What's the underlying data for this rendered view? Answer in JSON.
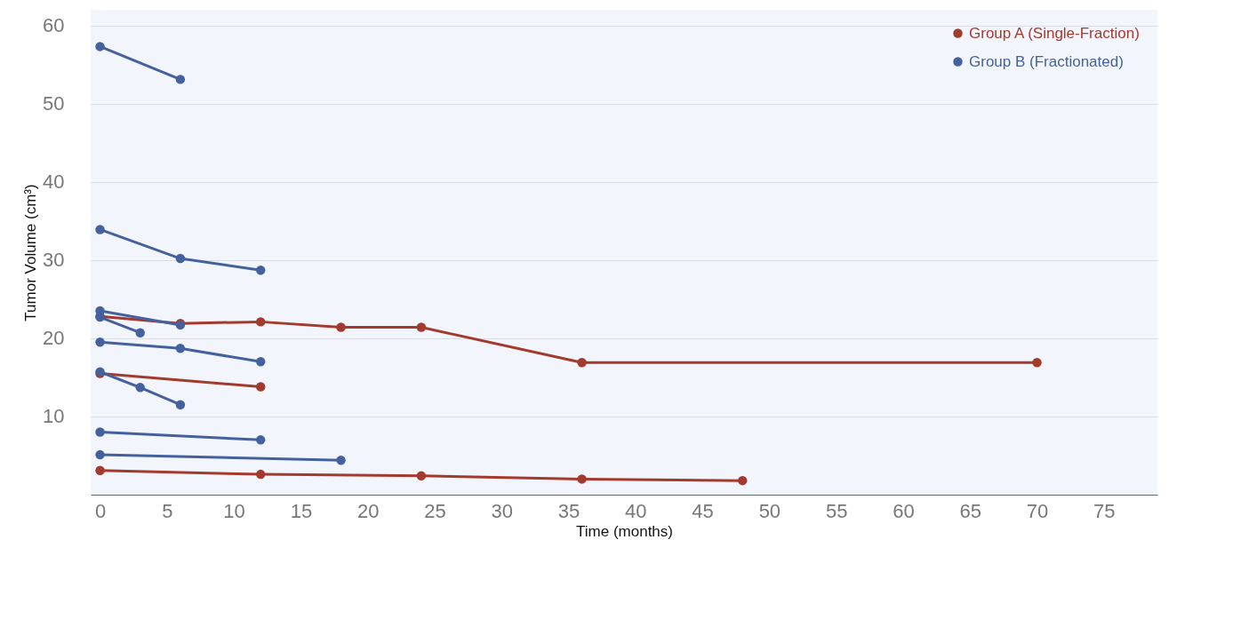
{
  "chart_data": {
    "type": "line",
    "xlabel": "Time (months)",
    "ylabel": "Tumor Volume (cm³)",
    "xlim": [
      -0.7,
      79
    ],
    "ylim": [
      0,
      62
    ],
    "xticks": [
      0,
      5,
      10,
      15,
      20,
      25,
      30,
      35,
      40,
      45,
      50,
      55,
      60,
      65,
      70,
      75
    ],
    "yticks": [
      10,
      20,
      30,
      40,
      50,
      60
    ],
    "grid": "y",
    "legend": "top right",
    "marker": "circle",
    "line_style": "solid",
    "series": [
      {
        "name": "Group A (Single-Fraction)",
        "color": "#a33a2e",
        "x": [
          0,
          6,
          12,
          18,
          24,
          36,
          70
        ],
        "values": [
          22.8,
          21.9,
          22.1,
          21.4,
          21.4,
          16.9,
          16.9
        ]
      },
      {
        "color": "#a33a2e",
        "x": [
          0,
          12
        ],
        "values": [
          15.5,
          13.8
        ]
      },
      {
        "color": "#a33a2e",
        "x": [
          0,
          12,
          24,
          36,
          48
        ],
        "values": [
          3.1,
          2.6,
          2.4,
          2.0,
          1.8
        ]
      },
      {
        "name": "Group B (Fractionated)",
        "color": "#44619e",
        "x": [
          0,
          6
        ],
        "values": [
          57.3,
          53.1
        ]
      },
      {
        "color": "#44619e",
        "x": [
          0,
          6,
          12
        ],
        "values": [
          33.9,
          30.2,
          28.7
        ]
      },
      {
        "color": "#44619e",
        "x": [
          0,
          6
        ],
        "values": [
          23.5,
          21.7
        ]
      },
      {
        "color": "#44619e",
        "x": [
          0,
          3
        ],
        "values": [
          22.7,
          20.7
        ]
      },
      {
        "color": "#44619e",
        "x": [
          0,
          6,
          12
        ],
        "values": [
          19.5,
          18.7,
          17.0
        ]
      },
      {
        "color": "#44619e",
        "x": [
          0,
          3,
          6
        ],
        "values": [
          15.7,
          13.7,
          11.5
        ]
      },
      {
        "color": "#44619e",
        "x": [
          0,
          12
        ],
        "values": [
          8.0,
          7.0
        ]
      },
      {
        "color": "#44619e",
        "x": [
          0,
          18
        ],
        "values": [
          5.1,
          4.4
        ]
      }
    ]
  }
}
